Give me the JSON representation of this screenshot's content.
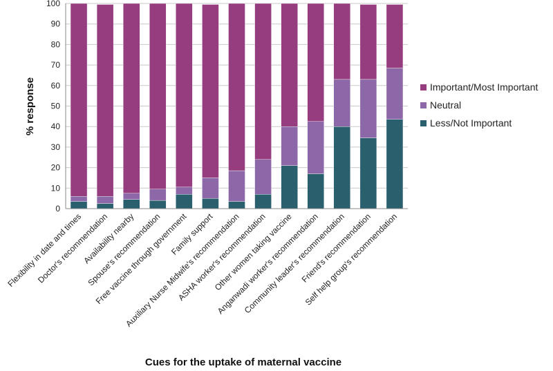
{
  "chart_data": {
    "type": "stacked-bar",
    "title": "",
    "xlabel": "Cues for the uptake of maternal vaccine",
    "ylabel": "% response",
    "ylim": [
      0,
      100
    ],
    "yticks": [
      0,
      10,
      20,
      30,
      40,
      50,
      60,
      70,
      80,
      90,
      100
    ],
    "grid": true,
    "legend_position": "right",
    "categories": [
      "Flexibility in date and times",
      "Doctor's recommendation",
      "Availability nearby",
      "Spouse's recommendation",
      "Free vaccine through government",
      "Family support",
      "Auxiliary Nurse Midwife's recommendation",
      "ASHA worker's recommendation",
      "Other women taking vaccine",
      "Anganwadi worker's recommendation",
      "Community leader's recommendation",
      "Friend's recommendation",
      "Self help group's recommendation"
    ],
    "series": [
      {
        "name": "Less/Not Important",
        "color": "#2a5f6e",
        "values": [
          3.5,
          2.5,
          4.5,
          4,
          7,
          5,
          3.5,
          7,
          21,
          17,
          40,
          34.5,
          43.5
        ]
      },
      {
        "name": "Neutral",
        "color": "#8c68a8",
        "values": [
          2.5,
          3.5,
          3,
          5.5,
          3.5,
          10,
          15,
          17,
          19,
          25.5,
          23,
          28.5,
          25
        ]
      },
      {
        "name": "Important/Most Important",
        "color": "#953d7e",
        "values": [
          94,
          93.5,
          92.5,
          90.5,
          89.5,
          84.5,
          81.5,
          76,
          60,
          57.5,
          37,
          36.5,
          31
        ]
      }
    ]
  }
}
